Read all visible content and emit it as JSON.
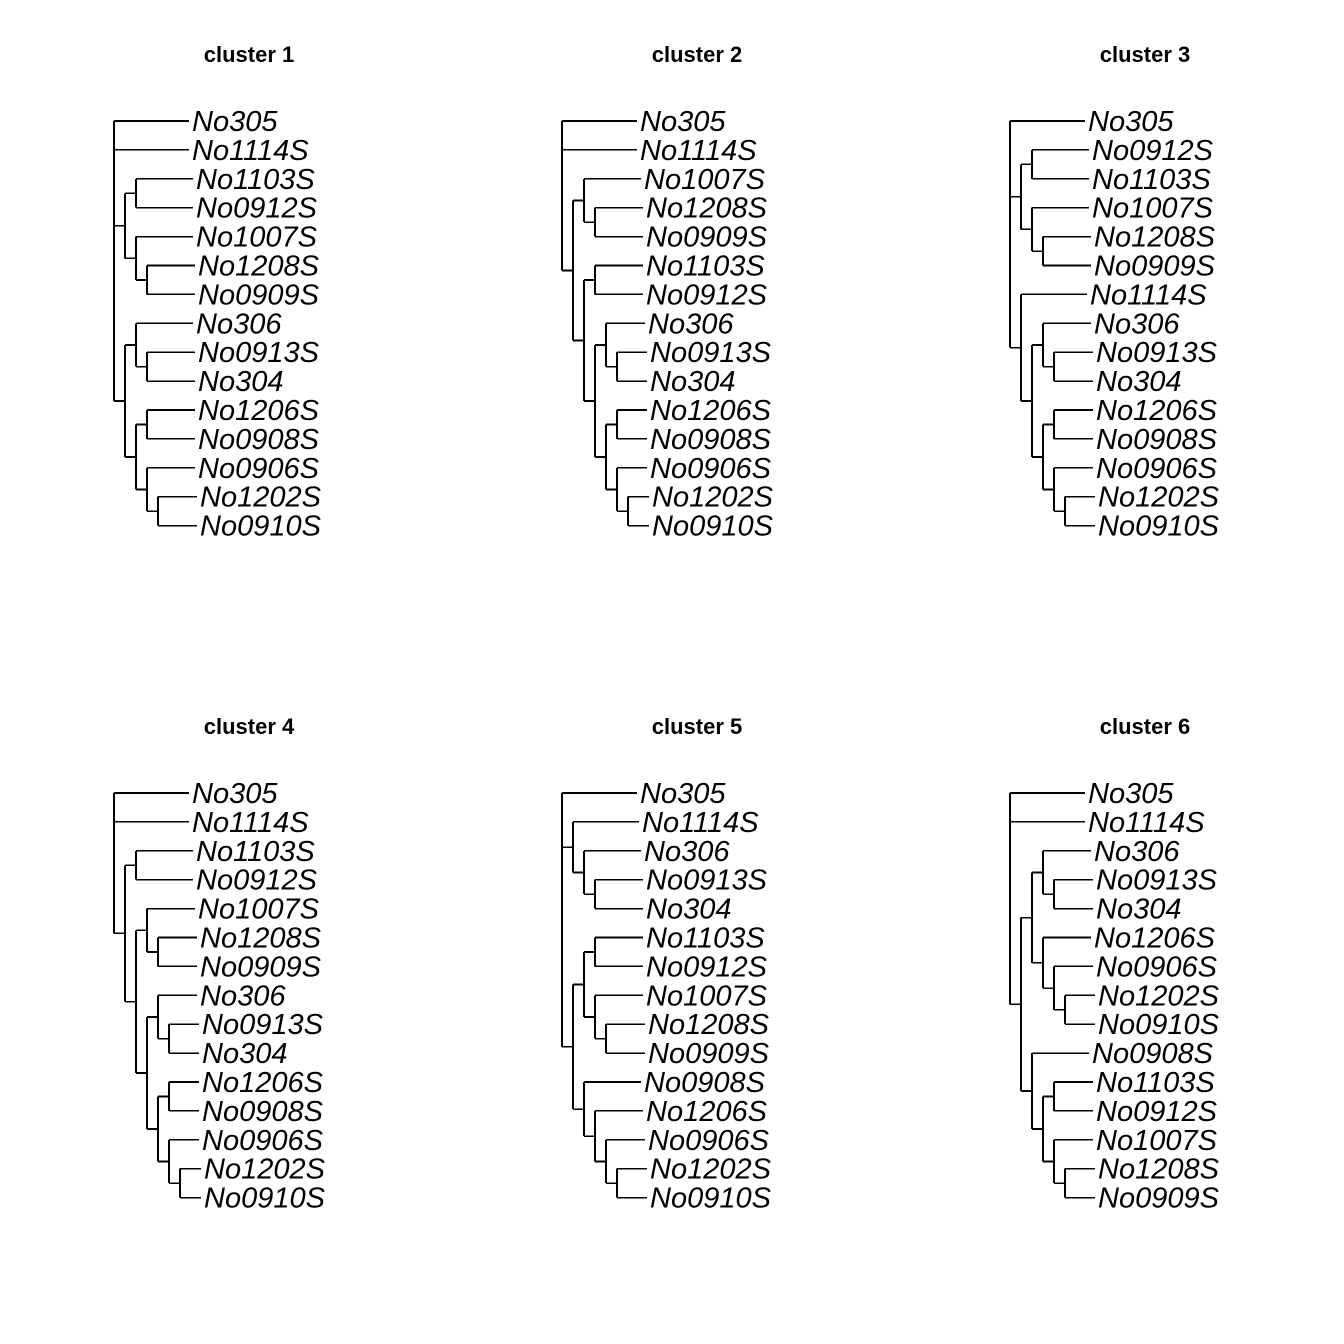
{
  "panels": [
    {
      "title": "cluster 1",
      "tree": [
        "No305",
        "No1114S",
        [
          [
            "No1103S",
            "No0912S"
          ],
          [
            "No1007S",
            [
              "No1208S",
              "No0909S"
            ]
          ]
        ],
        [
          [
            "No306",
            [
              "No0913S",
              "No304"
            ]
          ],
          [
            [
              "No1206S",
              "No0908S"
            ],
            [
              "No0906S",
              [
                "No1202S",
                "No0910S"
              ]
            ]
          ]
        ]
      ]
    },
    {
      "title": "cluster 2",
      "tree": [
        "No305",
        "No1114S",
        [
          [
            "No1007S",
            [
              "No1208S",
              "No0909S"
            ]
          ],
          [
            [
              "No1103S",
              "No0912S"
            ],
            [
              [
                "No306",
                [
                  "No0913S",
                  "No304"
                ]
              ],
              [
                [
                  "No1206S",
                  "No0908S"
                ],
                [
                  "No0906S",
                  [
                    "No1202S",
                    "No0910S"
                  ]
                ]
              ]
            ]
          ]
        ]
      ]
    },
    {
      "title": "cluster 3",
      "tree": [
        "No305",
        [
          [
            "No0912S",
            "No1103S"
          ],
          [
            "No1007S",
            [
              "No1208S",
              "No0909S"
            ]
          ]
        ],
        [
          "No1114S",
          [
            [
              "No306",
              [
                "No0913S",
                "No304"
              ]
            ],
            [
              [
                "No1206S",
                "No0908S"
              ],
              [
                "No0906S",
                [
                  "No1202S",
                  "No0910S"
                ]
              ]
            ]
          ]
        ]
      ]
    },
    {
      "title": "cluster 4",
      "tree": [
        "No305",
        "No1114S",
        [
          [
            "No1103S",
            "No0912S"
          ],
          [
            [
              "No1007S",
              [
                "No1208S",
                "No0909S"
              ]
            ],
            [
              [
                "No306",
                [
                  "No0913S",
                  "No304"
                ]
              ],
              [
                [
                  "No1206S",
                  "No0908S"
                ],
                [
                  "No0906S",
                  [
                    "No1202S",
                    "No0910S"
                  ]
                ]
              ]
            ]
          ]
        ]
      ]
    },
    {
      "title": "cluster 5",
      "tree": [
        "No305",
        [
          "No1114S",
          [
            "No306",
            [
              "No0913S",
              "No304"
            ]
          ]
        ],
        [
          [
            [
              "No1103S",
              "No0912S"
            ],
            [
              "No1007S",
              [
                "No1208S",
                "No0909S"
              ]
            ]
          ],
          [
            "No0908S",
            [
              "No1206S",
              [
                "No0906S",
                [
                  "No1202S",
                  "No0910S"
                ]
              ]
            ]
          ]
        ]
      ]
    },
    {
      "title": "cluster 6",
      "tree": [
        "No305",
        "No1114S",
        [
          [
            [
              "No306",
              [
                "No0913S",
                "No304"
              ]
            ],
            [
              "No1206S",
              [
                "No0906S",
                [
                  "No1202S",
                  "No0910S"
                ]
              ]
            ]
          ],
          [
            "No0908S",
            [
              [
                "No1103S",
                "No0912S"
              ],
              [
                "No1007S",
                [
                  "No1208S",
                  "No0909S"
                ]
              ]
            ]
          ]
        ]
      ]
    }
  ]
}
